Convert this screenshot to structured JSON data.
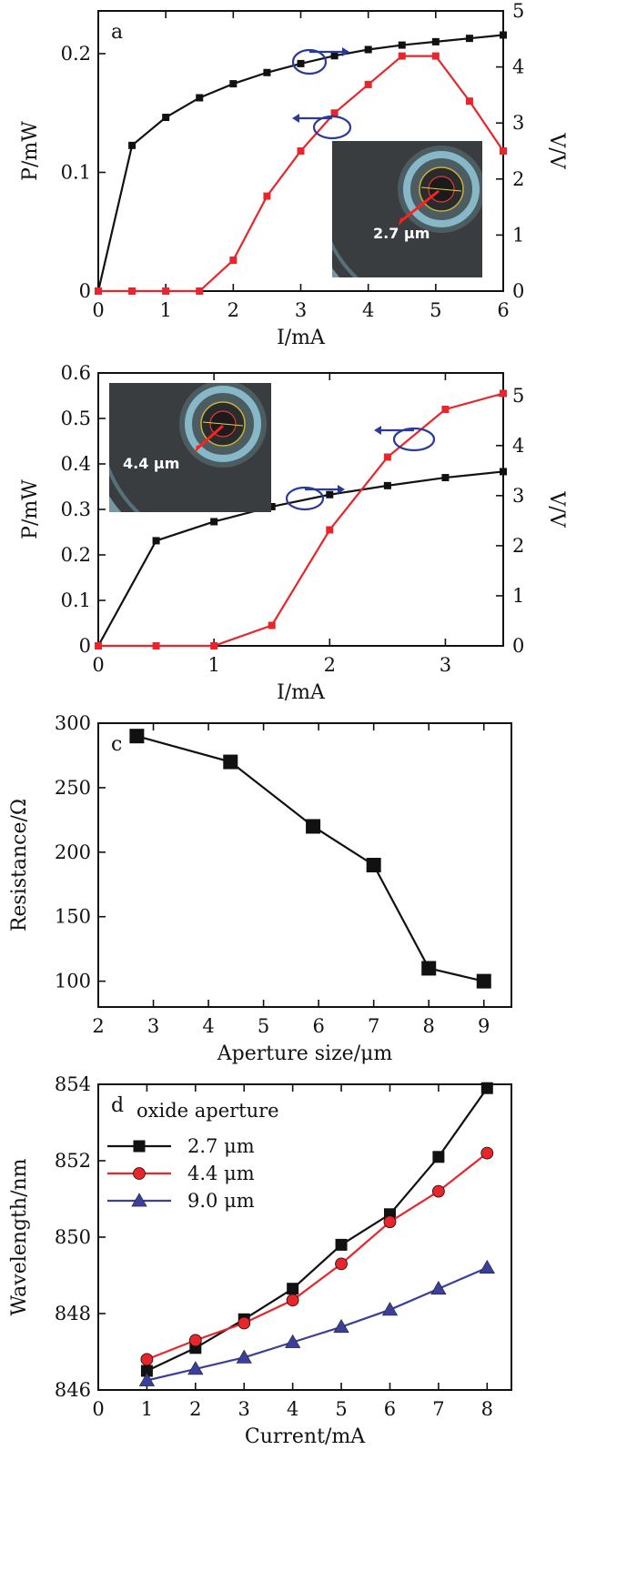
{
  "chart_data": [
    {
      "id": "a",
      "type": "line",
      "panel_label": "a",
      "xlabel": "I/mA",
      "ylabel_left": "P/mW",
      "ylabel_right": "V/V",
      "xlim": [
        0,
        6
      ],
      "ylim_left": [
        0,
        0.236
      ],
      "ylim_right": [
        0,
        5
      ],
      "x_ticks": [
        "0",
        "1",
        "2",
        "3",
        "4",
        "5",
        "6"
      ],
      "y_left_ticks": [
        "0",
        "0.1",
        "0.2"
      ],
      "y_right_ticks": [
        "0",
        "1",
        "2",
        "3",
        "4",
        "5"
      ],
      "series": [
        {
          "name": "Voltage",
          "axis": "right",
          "color": "#111111",
          "x": [
            0,
            0.5,
            1,
            1.5,
            2,
            2.5,
            3,
            3.5,
            4,
            4.5,
            5,
            5.5,
            6
          ],
          "values": [
            0,
            2.6,
            3.1,
            3.45,
            3.7,
            3.9,
            4.06,
            4.2,
            4.31,
            4.39,
            4.45,
            4.51,
            4.57
          ]
        },
        {
          "name": "Power",
          "axis": "left",
          "color": "#e8252a",
          "x": [
            0,
            0.5,
            1,
            1.5,
            2,
            2.5,
            3,
            3.5,
            4,
            4.5,
            5,
            5.5,
            6
          ],
          "values": [
            0,
            0,
            0,
            0,
            0.026,
            0.08,
            0.118,
            0.15,
            0.174,
            0.198,
            0.198,
            0.16,
            0.118
          ]
        }
      ],
      "annotations": {
        "inset_text": "2.7 μm"
      }
    },
    {
      "id": "b",
      "type": "line",
      "panel_label": "b",
      "xlabel": "I/mA",
      "ylabel_left": "P/mW",
      "ylabel_right": "V/V",
      "xlim": [
        0,
        3.5
      ],
      "ylim_left": [
        0,
        0.6
      ],
      "ylim_right": [
        0,
        5.45
      ],
      "x_ticks": [
        "0",
        "1",
        "2",
        "3"
      ],
      "y_left_ticks": [
        "0",
        "0.1",
        "0.2",
        "0.3",
        "0.4",
        "0.5",
        "0.6"
      ],
      "y_right_ticks": [
        "0",
        "1",
        "2",
        "3",
        "4",
        "5"
      ],
      "series": [
        {
          "name": "Voltage",
          "axis": "right",
          "color": "#111111",
          "x": [
            0,
            0.5,
            1,
            1.5,
            2,
            2.5,
            3,
            3.5
          ],
          "values": [
            0,
            2.1,
            2.48,
            2.78,
            3.02,
            3.2,
            3.36,
            3.48
          ]
        },
        {
          "name": "Power",
          "axis": "left",
          "color": "#e8252a",
          "x": [
            0,
            0.5,
            1,
            1.5,
            2,
            2.5,
            3,
            3.5
          ],
          "values": [
            0,
            0,
            0,
            0.045,
            0.255,
            0.415,
            0.52,
            0.555
          ]
        }
      ],
      "annotations": {
        "inset_text": "4.4 μm"
      }
    },
    {
      "id": "c",
      "type": "line",
      "panel_label": "c",
      "xlabel": "Aperture size/μm",
      "ylabel": "Resistance/Ω",
      "xlim": [
        2,
        9.5
      ],
      "ylim": [
        80,
        300
      ],
      "x_ticks": [
        "2",
        "3",
        "4",
        "5",
        "6",
        "7",
        "8",
        "9"
      ],
      "y_ticks": [
        "100",
        "150",
        "200",
        "250",
        "300"
      ],
      "series": [
        {
          "name": "Resistance",
          "color": "#111111",
          "x": [
            2.7,
            4.4,
            5.9,
            7,
            8,
            9
          ],
          "values": [
            290,
            270,
            220,
            190,
            110,
            100
          ]
        }
      ]
    },
    {
      "id": "d",
      "type": "line",
      "panel_label": "d",
      "xlabel": "Current/mA",
      "ylabel": "Wavelength/nm",
      "xlim": [
        0,
        8.5
      ],
      "ylim": [
        846,
        854
      ],
      "x_ticks": [
        "0",
        "1",
        "2",
        "3",
        "4",
        "5",
        "6",
        "7",
        "8"
      ],
      "y_ticks": [
        "846",
        "848",
        "850",
        "852",
        "854"
      ],
      "legend_title": "oxide aperture",
      "legend_position": "top-left",
      "series": [
        {
          "name": "2.7 μm",
          "marker": "square",
          "color": "#111111",
          "x": [
            1,
            2,
            3,
            4,
            5,
            6,
            7,
            8
          ],
          "values": [
            846.5,
            847.1,
            847.85,
            848.65,
            849.8,
            850.6,
            852.1,
            853.9
          ]
        },
        {
          "name": "4.4 μm",
          "marker": "circle",
          "color": "#e8252a",
          "x": [
            1,
            2,
            3,
            4,
            5,
            6,
            7,
            8
          ],
          "values": [
            846.8,
            847.3,
            847.75,
            848.35,
            849.3,
            850.4,
            851.2,
            852.2
          ]
        },
        {
          "name": "9.0 μm",
          "marker": "triangle",
          "color": "#3c3f9a",
          "x": [
            1,
            2,
            3,
            4,
            5,
            6,
            7,
            8
          ],
          "values": [
            846.25,
            846.55,
            846.85,
            847.25,
            847.65,
            848.1,
            848.65,
            849.2
          ]
        }
      ]
    }
  ]
}
